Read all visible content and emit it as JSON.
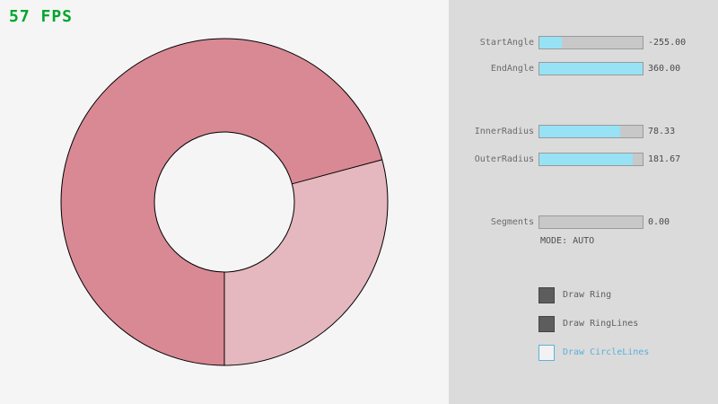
{
  "fps": {
    "text": "57 FPS",
    "color": "#00a52e"
  },
  "ring": {
    "color_double_pass": "#d98994",
    "color_single_pass": "#e5b7be",
    "outline_color": "#000000"
  },
  "panel": {
    "accent_fill": "#97e2f5",
    "sliders": [
      {
        "label": "StartAngle",
        "value": "-255.00",
        "fill_pct": 22
      },
      {
        "label": "EndAngle",
        "value": "360.00",
        "fill_pct": 100
      },
      {
        "label": "InnerRadius",
        "value": "78.33",
        "fill_pct": 78.3
      },
      {
        "label": "OuterRadius",
        "value": "181.67",
        "fill_pct": 90.8
      },
      {
        "label": "Segments",
        "value": "0.00",
        "fill_pct": 0
      }
    ],
    "mode_label": "MODE: AUTO",
    "checkboxes": [
      {
        "label": "Draw Ring",
        "checked": true
      },
      {
        "label": "Draw RingLines",
        "checked": true
      },
      {
        "label": "Draw CircleLines",
        "checked": false
      }
    ]
  }
}
